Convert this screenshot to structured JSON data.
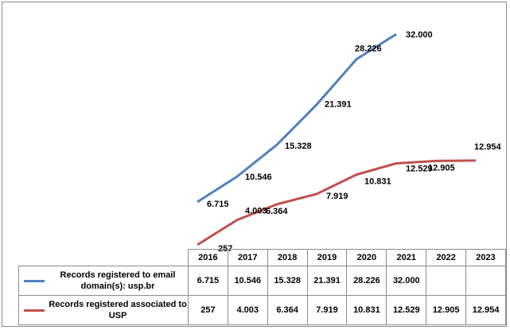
{
  "chart_data": {
    "type": "line",
    "categories": [
      "2016",
      "2017",
      "2018",
      "2019",
      "2020",
      "2021",
      "2022",
      "2023"
    ],
    "series": [
      {
        "name": "Records registered to email domain(s): usp.br",
        "color": "#4f81bd",
        "values": [
          6715,
          10546,
          15328,
          21391,
          28226,
          32000,
          null,
          null
        ],
        "labels": [
          "6.715",
          "10.546",
          "15.328",
          "21.391",
          "28.226",
          "32.000",
          "",
          ""
        ]
      },
      {
        "name": "Records registered associated to USP",
        "color": "#c0504d",
        "values": [
          257,
          4003,
          6364,
          7919,
          10831,
          12529,
          12905,
          12954
        ],
        "labels": [
          "257",
          "4.003",
          "6.364",
          "7.919",
          "10.831",
          "12.529",
          "12.905",
          "12.954"
        ]
      }
    ],
    "title": "",
    "xlabel": "",
    "ylabel": "",
    "ylim": [
      0,
      34000
    ],
    "grid": false,
    "legend": "data table below chart"
  }
}
